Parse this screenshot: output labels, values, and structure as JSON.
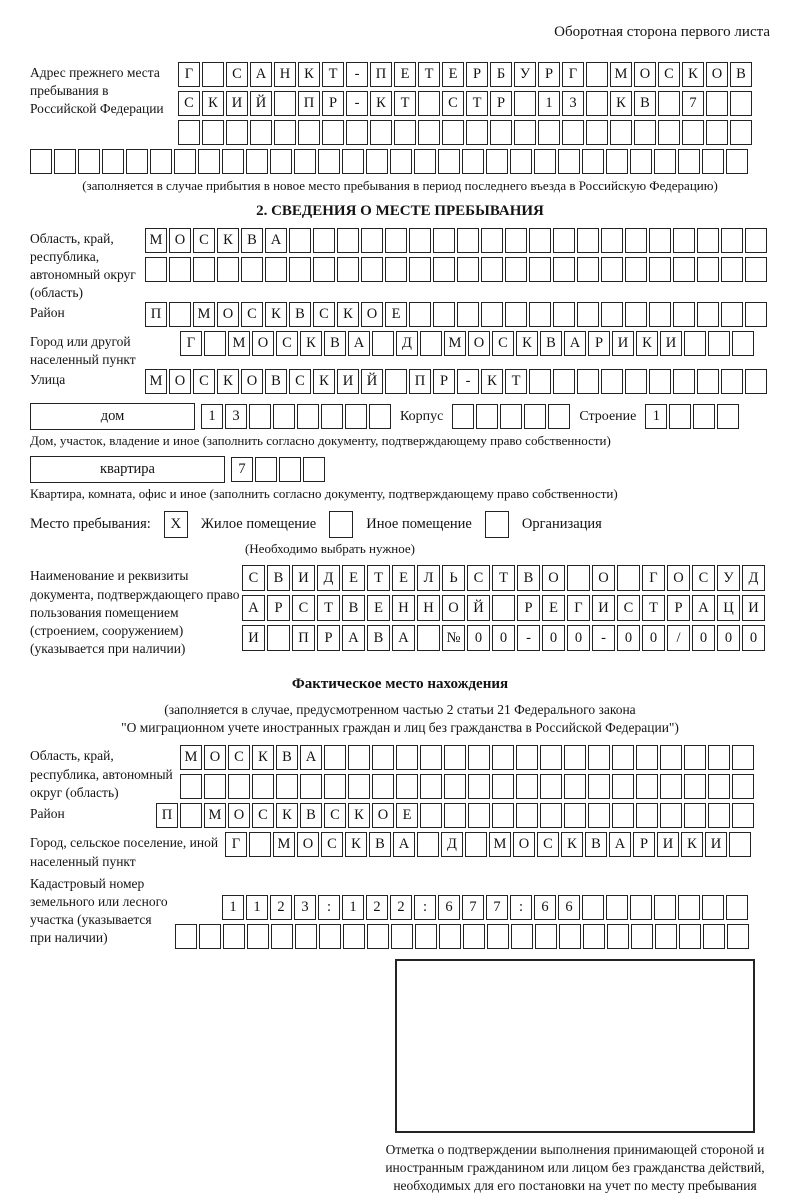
{
  "header": {
    "note": "Оборотная сторона первого листа"
  },
  "section1": {
    "label": "Адрес прежнего места пребывания в Российской Федерации",
    "row1": [
      "Г",
      "",
      "С",
      "А",
      "Н",
      "К",
      "Т",
      "-",
      "П",
      "Е",
      "Т",
      "Е",
      "Р",
      "Б",
      "У",
      "Р",
      "Г",
      "",
      "М",
      "О",
      "С",
      "К",
      "О",
      "В"
    ],
    "row2": [
      "С",
      "К",
      "И",
      "Й",
      "",
      "П",
      "Р",
      "-",
      "К",
      "Т",
      "",
      "С",
      "Т",
      "Р",
      "",
      "1",
      "3",
      "",
      "К",
      "В",
      "",
      "7",
      "",
      ""
    ],
    "row3": [
      "",
      "",
      "",
      "",
      "",
      "",
      "",
      "",
      "",
      "",
      "",
      "",
      "",
      "",
      "",
      "",
      "",
      "",
      "",
      "",
      "",
      "",
      "",
      ""
    ],
    "row4": [
      "",
      "",
      "",
      "",
      "",
      "",
      "",
      "",
      "",
      "",
      "",
      "",
      "",
      "",
      "",
      "",
      "",
      "",
      "",
      "",
      "",
      "",
      "",
      "",
      "",
      "",
      "",
      "",
      "",
      ""
    ],
    "caption": "(заполняется в случае прибытия в новое место пребывания в период последнего въезда в Российскую Федерацию)"
  },
  "section2": {
    "title": "2. СВЕДЕНИЯ О МЕСТЕ ПРЕБЫВАНИЯ",
    "region": {
      "label": "Область, край, республика, автономный округ (область)",
      "row1": [
        "М",
        "О",
        "С",
        "К",
        "В",
        "А",
        "",
        "",
        "",
        "",
        "",
        "",
        "",
        "",
        "",
        "",
        "",
        "",
        "",
        "",
        "",
        "",
        "",
        "",
        "",
        ""
      ],
      "row2": [
        "",
        "",
        "",
        "",
        "",
        "",
        "",
        "",
        "",
        "",
        "",
        "",
        "",
        "",
        "",
        "",
        "",
        "",
        "",
        "",
        "",
        "",
        "",
        "",
        "",
        ""
      ]
    },
    "district": {
      "label": "Район",
      "row": [
        "П",
        "",
        "М",
        "О",
        "С",
        "К",
        "В",
        "С",
        "К",
        "О",
        "Е",
        "",
        "",
        "",
        "",
        "",
        "",
        "",
        "",
        "",
        "",
        "",
        "",
        "",
        "",
        ""
      ]
    },
    "city": {
      "label": "Город или другой населенный пункт",
      "row": [
        "Г",
        "",
        "М",
        "О",
        "С",
        "К",
        "В",
        "А",
        "",
        "Д",
        "",
        "М",
        "О",
        "С",
        "К",
        "В",
        "А",
        "Р",
        "И",
        "К",
        "И",
        "",
        "",
        ""
      ]
    },
    "street": {
      "label": "Улица",
      "row": [
        "М",
        "О",
        "С",
        "К",
        "О",
        "В",
        "С",
        "К",
        "И",
        "Й",
        "",
        "П",
        "Р",
        "-",
        "К",
        "Т",
        "",
        "",
        "",
        "",
        "",
        "",
        "",
        "",
        "",
        ""
      ]
    },
    "house": {
      "box_label": "дом",
      "cells": [
        "1",
        "3",
        "",
        "",
        "",
        "",
        "",
        ""
      ],
      "korpus_label": "Корпус",
      "korpus_cells": [
        "",
        "",
        "",
        "",
        ""
      ],
      "stroenie_label": "Строение",
      "stroenie_cells": [
        "1",
        "",
        "",
        ""
      ]
    },
    "house_caption": "Дом, участок, владение и иное (заполнить согласно документу, подтверждающему право собственности)",
    "apartment": {
      "box_label": "квартира",
      "cells": [
        "7",
        "",
        "",
        ""
      ]
    },
    "apartment_caption": "Квартира, комната, офис и иное (заполнить согласно документу, подтверждающему право собственности)",
    "stay_type": {
      "label": "Место пребывания:",
      "options": [
        {
          "label": "Жилое помещение",
          "checked": "X"
        },
        {
          "label": "Иное помещение",
          "checked": ""
        },
        {
          "label": "Организация",
          "checked": ""
        }
      ],
      "note": "(Необходимо выбрать нужное)"
    },
    "document": {
      "label": "Наименование и реквизиты документа, подтверждающего право пользования помещением (строением, сооружением) (указывается при наличии)",
      "row1": [
        "С",
        "В",
        "И",
        "Д",
        "Е",
        "Т",
        "Е",
        "Л",
        "Ь",
        "С",
        "Т",
        "В",
        "О",
        "",
        "О",
        "",
        "Г",
        "О",
        "С",
        "У",
        "Д"
      ],
      "row2": [
        "А",
        "Р",
        "С",
        "Т",
        "В",
        "Е",
        "Н",
        "Н",
        "О",
        "Й",
        "",
        "Р",
        "Е",
        "Г",
        "И",
        "С",
        "Т",
        "Р",
        "А",
        "Ц",
        "И"
      ],
      "row3": [
        "И",
        "",
        "П",
        "Р",
        "А",
        "В",
        "А",
        "",
        "№",
        "0",
        "0",
        "-",
        "0",
        "0",
        "-",
        "0",
        "0",
        "/",
        "0",
        "0",
        "0"
      ]
    }
  },
  "actual_location": {
    "title": "Фактическое место нахождения",
    "subtitle1": "(заполняется в случае, предусмотренном частью 2 статьи 21 Федерального закона",
    "subtitle2": "\"О миграционном учете иностранных граждан и лиц без гражданства в Российской Федерации\")",
    "region": {
      "label": "Область, край, республика, автономный округ (область)",
      "row1": [
        "М",
        "О",
        "С",
        "К",
        "В",
        "А",
        "",
        "",
        "",
        "",
        "",
        "",
        "",
        "",
        "",
        "",
        "",
        "",
        "",
        "",
        "",
        "",
        "",
        ""
      ],
      "row2": [
        "",
        "",
        "",
        "",
        "",
        "",
        "",
        "",
        "",
        "",
        "",
        "",
        "",
        "",
        "",
        "",
        "",
        "",
        "",
        "",
        "",
        "",
        "",
        ""
      ]
    },
    "district": {
      "label": "Район",
      "row": [
        "П",
        "",
        "М",
        "О",
        "С",
        "К",
        "В",
        "С",
        "К",
        "О",
        "Е",
        "",
        "",
        "",
        "",
        "",
        "",
        "",
        "",
        "",
        "",
        "",
        "",
        "",
        ""
      ]
    },
    "city": {
      "label": "Город, сельское поселение, иной населенный пункт",
      "row": [
        "Г",
        "",
        "М",
        "О",
        "С",
        "К",
        "В",
        "А",
        "",
        "Д",
        "",
        "М",
        "О",
        "С",
        "К",
        "В",
        "А",
        "Р",
        "И",
        "К",
        "И",
        ""
      ]
    },
    "cadastral": {
      "label": "Кадастровый номер земельного или лесного участка (указывается при наличии)",
      "row1": [
        "1",
        "1",
        "2",
        "3",
        ":",
        "1",
        "2",
        "2",
        ":",
        "6",
        "7",
        "7",
        ":",
        "6",
        "6",
        "",
        "",
        "",
        "",
        "",
        "",
        ""
      ],
      "row2": [
        "",
        "",
        "",
        "",
        "",
        "",
        "",
        "",
        "",
        "",
        "",
        "",
        "",
        "",
        "",
        "",
        "",
        "",
        "",
        "",
        "",
        "",
        "",
        ""
      ]
    },
    "stamp_caption": "Отметка о подтверждении выполнения принимающей стороной и иностранным гражданином или лицом без гражданства действий, необходимых для его постановки на учет по месту пребывания"
  }
}
